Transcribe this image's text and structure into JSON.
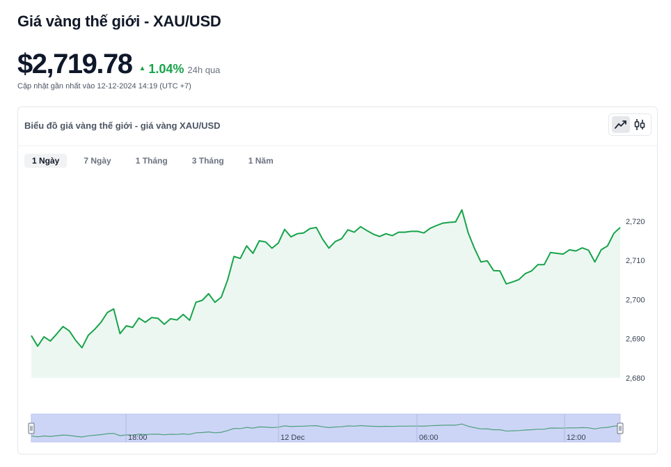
{
  "header": {
    "title": "Giá vàng thế giới - XAU/USD",
    "price": "$2,719.78",
    "change_pct": "1.04%",
    "change_period": "24h qua",
    "updated": "Cập nhật gần nhất vào 12-12-2024 14:19 (UTC +7)"
  },
  "card": {
    "title": "Biểu đồ giá vàng thế giới - giá vàng XAU/USD",
    "view_modes": [
      {
        "name": "line-chart",
        "active": true
      },
      {
        "name": "candlestick-chart",
        "active": false
      }
    ],
    "tabs": [
      {
        "label": "1 Ngày",
        "active": true
      },
      {
        "label": "7 Ngày",
        "active": false
      },
      {
        "label": "1 Tháng",
        "active": false
      },
      {
        "label": "3 Tháng",
        "active": false
      },
      {
        "label": "1 Năm",
        "active": false
      }
    ]
  },
  "colors": {
    "line": "#16a34a",
    "area": "#edf7f1",
    "navigator_fill": "#cdd5f6",
    "navigator_line": "#4ea07b",
    "up": "#16a34a"
  },
  "chart_data": {
    "type": "area",
    "title": "",
    "xlabel": "",
    "ylabel": "",
    "ylim": [
      2680,
      2730
    ],
    "y_ticks": [
      2680,
      2690,
      2700,
      2710,
      2720
    ],
    "y_tick_labels": [
      "2,680",
      "2,690",
      "2,700",
      "2,710",
      "2,720"
    ],
    "navigator_labels": [
      "18:00",
      "12 Dec",
      "06:00",
      "12:00"
    ],
    "grid": false,
    "legend": "none",
    "series": [
      {
        "values": [
          2690.8,
          2688.1,
          2690.5,
          2689.4,
          2691.2,
          2693.1,
          2692.0,
          2689.6,
          2687.7,
          2690.9,
          2692.4,
          2694.2,
          2696.7,
          2697.6,
          2691.3,
          2693.3,
          2692.9,
          2695.3,
          2694.2,
          2695.4,
          2695.2,
          2693.7,
          2695.1,
          2694.8,
          2696.2,
          2694.7,
          2699.3,
          2699.8,
          2701.5,
          2699.3,
          2700.6,
          2705.0,
          2711.0,
          2710.5,
          2713.7,
          2711.8,
          2715.0,
          2714.7,
          2713.1,
          2714.4,
          2717.9,
          2716.0,
          2716.8,
          2717.0,
          2718.1,
          2718.4,
          2715.4,
          2713.1,
          2714.8,
          2715.5,
          2717.8,
          2717.2,
          2718.6,
          2717.6,
          2716.7,
          2716.1,
          2716.8,
          2716.3,
          2717.2,
          2717.2,
          2717.4,
          2717.4,
          2717.0,
          2718.2,
          2718.9,
          2719.5,
          2719.7,
          2719.8,
          2722.9,
          2717.0,
          2713.0,
          2709.6,
          2709.9,
          2707.4,
          2707.3,
          2704.0,
          2704.5,
          2705.1,
          2706.6,
          2707.3,
          2708.9,
          2708.9,
          2712.0,
          2711.8,
          2711.6,
          2712.7,
          2712.4,
          2713.2,
          2712.6,
          2709.6,
          2712.7,
          2713.7,
          2716.9,
          2718.4
        ]
      }
    ]
  }
}
